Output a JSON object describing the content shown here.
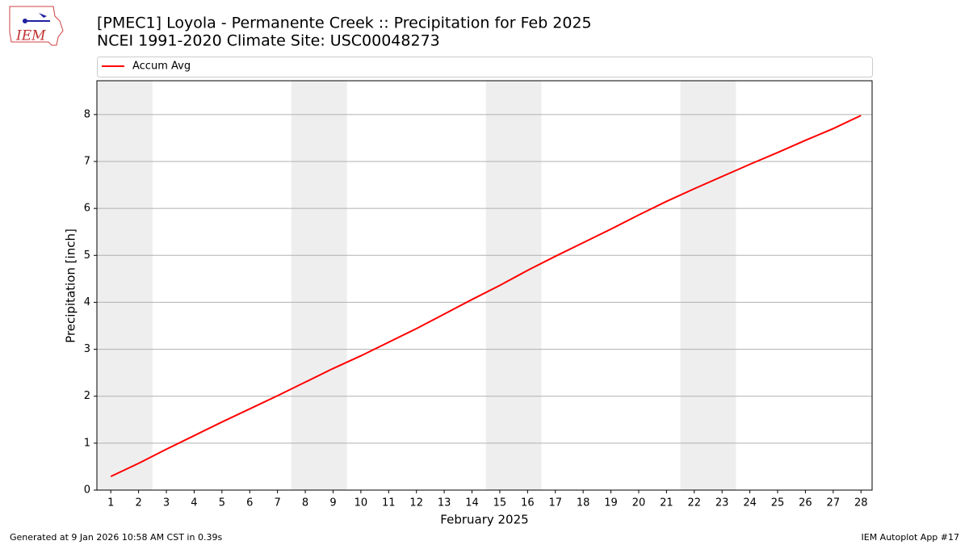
{
  "logo_text": "IEM",
  "footer_left": "Generated at 9 Jan 2026 10:58 AM CST in 0.39s",
  "footer_right": "IEM Autoplot App #17",
  "chart_data": {
    "type": "line",
    "title": "[PMEC1] Loyola - Permanente Creek :: Precipitation for Feb 2025",
    "subtitle": "NCEI 1991-2020 Climate Site: USC00048273",
    "x_label": "February 2025",
    "y_label": "Precipitation [inch]",
    "x": [
      1,
      2,
      3,
      4,
      5,
      6,
      7,
      8,
      9,
      10,
      11,
      12,
      13,
      14,
      15,
      16,
      17,
      18,
      19,
      20,
      21,
      22,
      23,
      24,
      25,
      26,
      27,
      28
    ],
    "series": [
      {
        "name": "Accum Avg",
        "color": "#ff0000",
        "values": [
          0.29,
          0.57,
          0.87,
          1.16,
          1.45,
          1.73,
          2.01,
          2.3,
          2.59,
          2.86,
          3.15,
          3.44,
          3.75,
          4.06,
          4.36,
          4.68,
          4.98,
          5.27,
          5.56,
          5.86,
          6.15,
          6.42,
          6.68,
          6.94,
          7.19,
          7.45,
          7.7,
          7.98
        ]
      }
    ],
    "xlim": [
      0.5,
      28.4
    ],
    "xticks": [
      1,
      2,
      3,
      4,
      5,
      6,
      7,
      8,
      9,
      10,
      11,
      12,
      13,
      14,
      15,
      16,
      17,
      18,
      19,
      20,
      21,
      22,
      23,
      24,
      25,
      26,
      27,
      28
    ],
    "ylim": [
      0,
      8.72
    ],
    "yticks": [
      0,
      1,
      2,
      3,
      4,
      5,
      6,
      7,
      8
    ],
    "grid": true,
    "shaded_spans": [
      [
        0.5,
        2.5
      ],
      [
        7.5,
        9.5
      ],
      [
        14.5,
        16.5
      ],
      [
        21.5,
        23.5
      ]
    ],
    "shade_color": "#eeeeee",
    "legend": "top"
  }
}
